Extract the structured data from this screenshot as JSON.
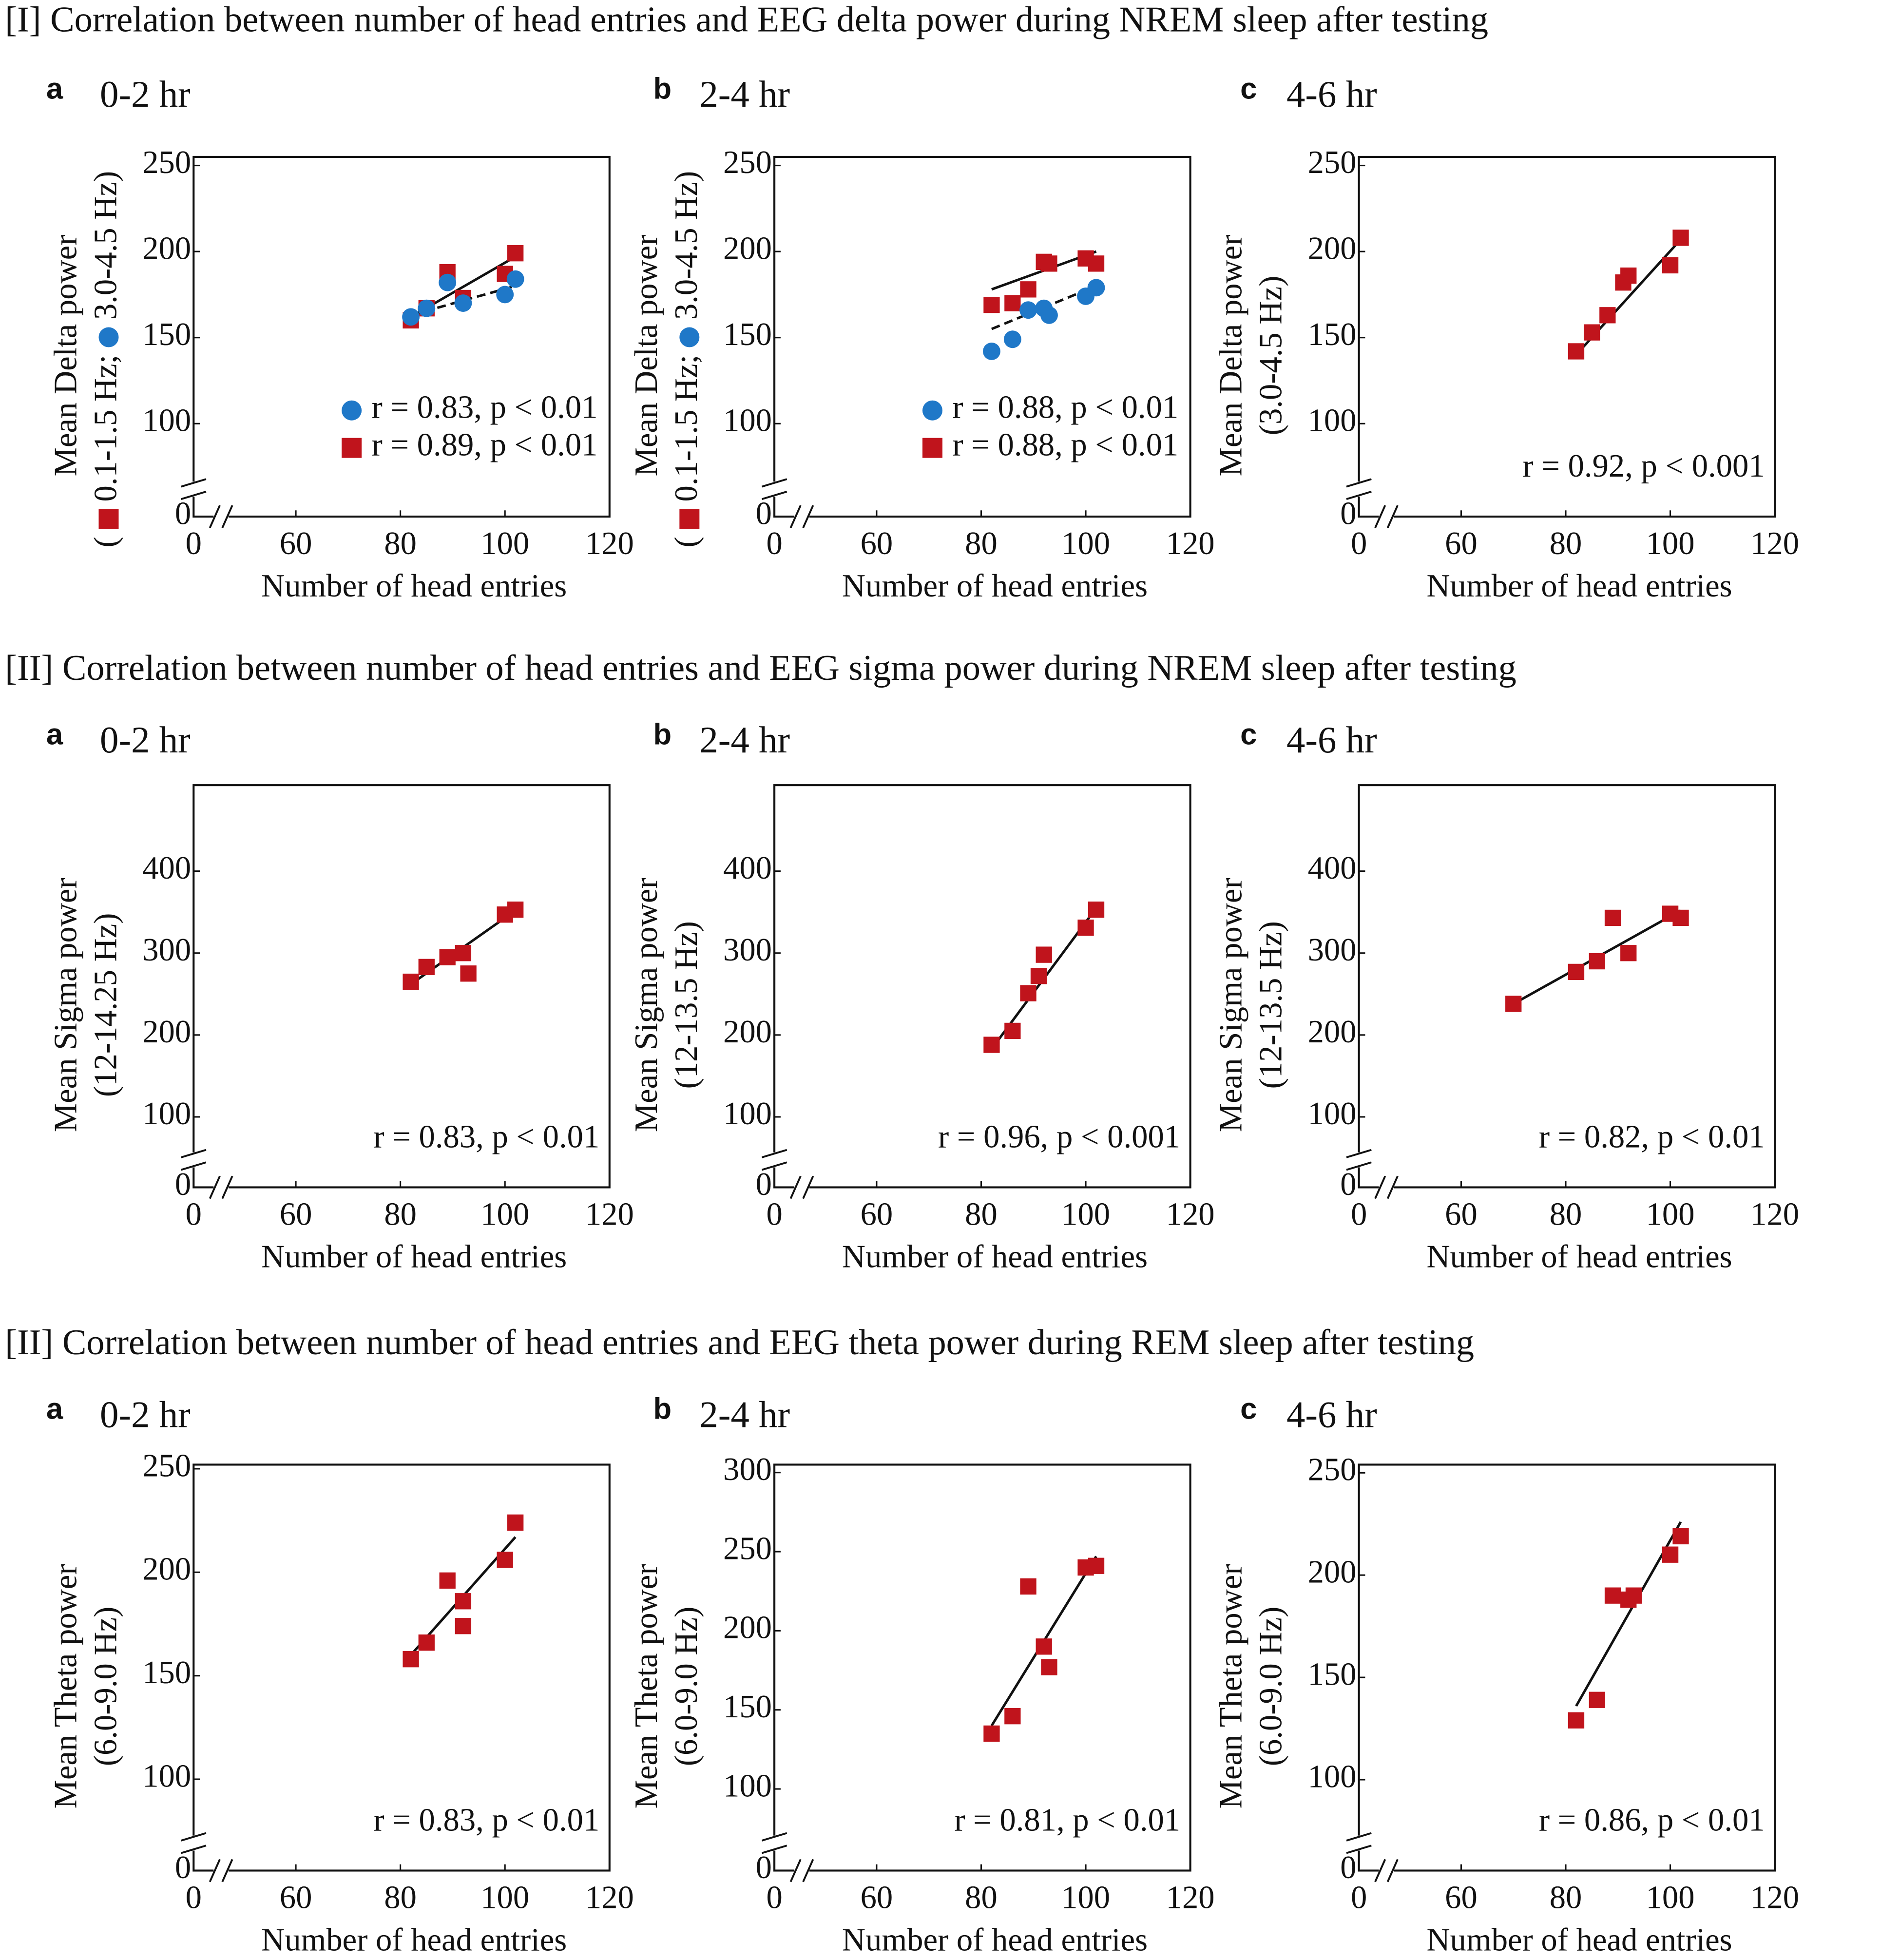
{
  "headings": [
    "[I]  Correlation between number of head entries and EEG delta power during NREM sleep after testing",
    "[II]  Correlation between number of head entries and EEG sigma power during NREM sleep after testing",
    "[II]  Correlation between number of head entries and EEG theta power during REM sleep after testing"
  ],
  "chart_data": [
    {
      "type": "scatter",
      "label": "a",
      "title": "0-2 hr",
      "xlabel": "Number of head entries",
      "ylabel": [
        "Mean Delta power",
        [
          "(",
          "0.1-1.5 Hz;",
          "3.0-4.5 Hz)"
        ]
      ],
      "xlim": [
        50,
        120
      ],
      "xticks": [
        0,
        60,
        80,
        100,
        120
      ],
      "ylim": [
        75,
        255
      ],
      "yticks": [
        0,
        100,
        150,
        200,
        250
      ],
      "axis_break": true,
      "series": [
        {
          "name": "0.1-1.5 Hz",
          "marker": "square",
          "color": "#c0141c",
          "x": [
            82,
            85,
            89,
            92,
            100,
            102
          ],
          "values": [
            160,
            167,
            188,
            173,
            187,
            199
          ],
          "fit": {
            "x": [
              82,
              102
            ],
            "y": [
              162,
              197
            ],
            "dashed": false
          },
          "annotation": "r = 0.89, p < 0.01"
        },
        {
          "name": "3.0-4.5 Hz",
          "marker": "circle",
          "color": "#1f78c8",
          "x": [
            82,
            85,
            89,
            92,
            100,
            102
          ],
          "values": [
            162,
            167,
            182,
            170,
            175,
            184
          ],
          "fit": {
            "x": [
              82,
              102
            ],
            "y": [
              163,
              180
            ],
            "dashed": true
          },
          "annotation": "r = 0.83, p < 0.01"
        }
      ]
    },
    {
      "type": "scatter",
      "label": "b",
      "title": "2-4 hr",
      "xlabel": "Number of head entries",
      "ylabel": [
        "Mean Delta power",
        [
          "(",
          "0.1-1.5 Hz;",
          "3.0-4.5 Hz)"
        ]
      ],
      "xlim": [
        50,
        120
      ],
      "xticks": [
        0,
        60,
        80,
        100,
        120
      ],
      "ylim": [
        75,
        255
      ],
      "yticks": [
        0,
        100,
        150,
        200,
        250
      ],
      "axis_break": true,
      "series": [
        {
          "name": "0.1-1.5 Hz",
          "marker": "square",
          "color": "#c0141c",
          "x": [
            82,
            86,
            89,
            92,
            93,
            100,
            102
          ],
          "values": [
            169,
            170,
            178,
            194,
            193,
            196,
            193
          ],
          "fit": {
            "x": [
              82,
              102
            ],
            "y": [
              178,
              200
            ],
            "dashed": false
          },
          "annotation": "r = 0.88, p < 0.01"
        },
        {
          "name": "3.0-4.5 Hz",
          "marker": "circle",
          "color": "#1f78c8",
          "x": [
            82,
            86,
            89,
            92,
            93,
            100,
            102
          ],
          "values": [
            142,
            149,
            166,
            167,
            163,
            174,
            179
          ],
          "fit": {
            "x": [
              82,
              102
            ],
            "y": [
              155,
              180
            ],
            "dashed": true
          },
          "annotation": "r = 0.88, p < 0.01"
        }
      ]
    },
    {
      "type": "scatter",
      "label": "c",
      "title": "4-6 hr",
      "xlabel": "Number of head entries",
      "ylabel": [
        "Mean Delta power",
        "(3.0-4.5 Hz)"
      ],
      "annotation": "r = 0.92, p < 0.001",
      "xlim": [
        50,
        120
      ],
      "xticks": [
        0,
        60,
        80,
        100,
        120
      ],
      "ylim": [
        75,
        255
      ],
      "yticks": [
        0,
        100,
        150,
        200,
        250
      ],
      "axis_break": true,
      "series": [
        {
          "marker": "square",
          "color": "#c0141c",
          "x": [
            82,
            85,
            88,
            91,
            92,
            100,
            102
          ],
          "values": [
            142,
            153,
            163,
            182,
            186,
            192,
            208
          ],
          "fit": {
            "x": [
              82,
              102
            ],
            "y": [
              140,
              207
            ],
            "dashed": false
          }
        }
      ]
    },
    {
      "type": "scatter",
      "label": "a",
      "title": "0-2 hr",
      "xlabel": "Number of head entries",
      "ylabel": [
        "Mean  Sigma power",
        "(12-14.25 Hz)"
      ],
      "annotation": "r = 0.83, p < 0.01",
      "xlim": [
        50,
        120
      ],
      "xticks": [
        0,
        60,
        80,
        100,
        120
      ],
      "ylim": [
        75,
        505
      ],
      "yticks": [
        0,
        100,
        200,
        300,
        400
      ],
      "axis_break": true,
      "series": [
        {
          "marker": "square",
          "color": "#c0141c",
          "x": [
            82,
            85,
            89,
            92,
            93,
            100,
            102
          ],
          "values": [
            265,
            283,
            295,
            300,
            275,
            347,
            353
          ],
          "fit": {
            "x": [
              82,
              102
            ],
            "y": [
              262,
              352
            ],
            "dashed": false
          }
        }
      ]
    },
    {
      "type": "scatter",
      "label": "b",
      "title": "2-4 hr",
      "xlabel": "Number of head entries",
      "ylabel": [
        "Mean  Sigma power",
        "(12-13.5 Hz)"
      ],
      "annotation": "r = 0.96, p < 0.001",
      "xlim": [
        50,
        120
      ],
      "xticks": [
        0,
        60,
        80,
        100,
        120
      ],
      "ylim": [
        75,
        505
      ],
      "yticks": [
        0,
        100,
        200,
        300,
        400
      ],
      "axis_break": true,
      "series": [
        {
          "marker": "square",
          "color": "#c0141c",
          "x": [
            82,
            86,
            89,
            91,
            92,
            100,
            102
          ],
          "values": [
            188,
            205,
            251,
            272,
            298,
            331,
            353
          ],
          "fit": {
            "x": [
              82,
              102
            ],
            "y": [
              183,
              355
            ],
            "dashed": false
          }
        }
      ]
    },
    {
      "type": "scatter",
      "label": "c",
      "title": "4-6 hr",
      "xlabel": "Number of head entries",
      "ylabel": [
        "Mean  Sigma power",
        "(12-13.5 Hz)"
      ],
      "annotation": "r = 0.82, p < 0.01",
      "xlim": [
        50,
        120
      ],
      "xticks": [
        0,
        60,
        80,
        100,
        120
      ],
      "ylim": [
        75,
        505
      ],
      "yticks": [
        0,
        100,
        200,
        300,
        400
      ],
      "axis_break": true,
      "series": [
        {
          "marker": "square",
          "color": "#c0141c",
          "x": [
            70,
            82,
            86,
            89,
            92,
            100,
            102
          ],
          "values": [
            238,
            277,
            290,
            343,
            300,
            348,
            343
          ],
          "fit": {
            "x": [
              70,
              102
            ],
            "y": [
              238,
              352
            ],
            "dashed": false
          }
        }
      ]
    },
    {
      "type": "scatter",
      "label": "a",
      "title": "0-2 hr",
      "xlabel": "Number of head entries",
      "ylabel": [
        "Mean Theta power",
        "(6.0-9.0 Hz)"
      ],
      "annotation": "r = 0.83, p < 0.01",
      "xlim": [
        50,
        120
      ],
      "xticks": [
        0,
        60,
        80,
        100,
        120
      ],
      "ylim": [
        80,
        252
      ],
      "yticks": [
        0,
        100,
        150,
        200,
        250
      ],
      "axis_break": true,
      "series": [
        {
          "marker": "square",
          "color": "#c0141c",
          "x": [
            82,
            85,
            89,
            92,
            92,
            100,
            102
          ],
          "values": [
            158,
            166,
            196,
            174,
            186,
            206,
            224
          ],
          "fit": {
            "x": [
              82,
              102
            ],
            "y": [
              160,
              217
            ],
            "dashed": false
          }
        }
      ]
    },
    {
      "type": "scatter",
      "label": "b",
      "title": "2-4 hr",
      "xlabel": "Number of head entries",
      "ylabel": [
        "Mean Theta power",
        "(6.0-9.0 Hz)"
      ],
      "annotation": "r = 0.81, p < 0.01",
      "xlim": [
        50,
        120
      ],
      "xticks": [
        0,
        60,
        80,
        100,
        120
      ],
      "ylim": [
        80,
        305
      ],
      "yticks": [
        0,
        100,
        150,
        200,
        250,
        300
      ],
      "axis_break": true,
      "series": [
        {
          "marker": "square",
          "color": "#c0141c",
          "x": [
            82,
            86,
            89,
            92,
            93,
            100,
            102
          ],
          "values": [
            135,
            146,
            228,
            190,
            177,
            240,
            241
          ],
          "fit": {
            "x": [
              82,
              102
            ],
            "y": [
              140,
              247
            ],
            "dashed": false
          }
        }
      ]
    },
    {
      "type": "scatter",
      "label": "c",
      "title": "4-6 hr",
      "xlabel": "Number of head entries",
      "ylabel": [
        "Mean Theta power",
        "(6.0-9.0 Hz)"
      ],
      "annotation": "r = 0.86, p < 0.01",
      "xlim": [
        50,
        120
      ],
      "xticks": [
        0,
        60,
        80,
        100,
        120
      ],
      "ylim": [
        80,
        254
      ],
      "yticks": [
        0,
        100,
        150,
        200,
        250
      ],
      "axis_break": true,
      "series": [
        {
          "marker": "square",
          "color": "#c0141c",
          "x": [
            82,
            86,
            89,
            92,
            93,
            100,
            102
          ],
          "values": [
            129,
            139,
            190,
            188,
            190,
            210,
            219
          ],
          "fit": {
            "x": [
              82,
              102
            ],
            "y": [
              136,
              226
            ],
            "dashed": false
          }
        }
      ]
    }
  ]
}
